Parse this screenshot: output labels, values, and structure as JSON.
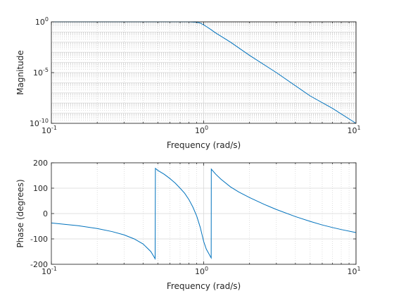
{
  "chart_data": [
    {
      "type": "line",
      "name": "magnitude-plot",
      "xlabel": "Frequency (rad/s)",
      "ylabel": "Magnitude",
      "xscale": "log",
      "yscale": "log",
      "xlim": [
        0.1,
        10
      ],
      "ylim": [
        1e-10,
        1
      ],
      "grid": true,
      "xticks": [
        {
          "value": 0.1,
          "base": "10",
          "exp": "-1"
        },
        {
          "value": 1,
          "base": "10",
          "exp": "0"
        },
        {
          "value": 10,
          "base": "10",
          "exp": "1"
        }
      ],
      "yticks": [
        {
          "value": 1e-10,
          "base": "10",
          "exp": "-10"
        },
        {
          "value": 1e-05,
          "base": "10",
          "exp": "-5"
        },
        {
          "value": 1,
          "base": "10",
          "exp": "0"
        }
      ],
      "series": [
        {
          "color": "#0072bd",
          "x": [
            0.1,
            0.2,
            0.3,
            0.4,
            0.5,
            0.6,
            0.7,
            0.8,
            0.9,
            0.95,
            1.0,
            1.05,
            1.1,
            1.2,
            1.5,
            2,
            3,
            5,
            7,
            10
          ],
          "y": [
            1,
            1,
            1,
            1,
            1,
            1,
            0.999,
            0.99,
            0.9,
            0.75,
            0.5,
            0.32,
            0.2,
            0.08,
            0.01,
            0.0005,
            1e-05,
            5e-08,
            3e-09,
            1e-10
          ]
        }
      ]
    },
    {
      "type": "line",
      "name": "phase-plot",
      "xlabel": "Frequency (rad/s)",
      "ylabel": "Phase (degrees)",
      "xscale": "log",
      "xlim": [
        0.1,
        10
      ],
      "ylim": [
        -200,
        200
      ],
      "grid": true,
      "xticks": [
        {
          "value": 0.1,
          "base": "10",
          "exp": "-1"
        },
        {
          "value": 1,
          "base": "10",
          "exp": "0"
        },
        {
          "value": 10,
          "base": "10",
          "exp": "1"
        }
      ],
      "yticks": [
        {
          "value": -200,
          "label": "-200"
        },
        {
          "value": -100,
          "label": "-100"
        },
        {
          "value": 0,
          "label": "0"
        },
        {
          "value": 100,
          "label": "100"
        },
        {
          "value": 200,
          "label": "200"
        }
      ],
      "series": [
        {
          "color": "#0072bd",
          "x": [
            0.1,
            0.15,
            0.2,
            0.25,
            0.3,
            0.35,
            0.4,
            0.45,
            0.48,
            0.482,
            0.5,
            0.55,
            0.6,
            0.65,
            0.7,
            0.75,
            0.8,
            0.85,
            0.9,
            0.95,
            1.0,
            1.04,
            1.12,
            1.122,
            1.2,
            1.3,
            1.5,
            1.7,
            2.0,
            2.5,
            3.0,
            4.0,
            5.0,
            6.0,
            7.0,
            8.0,
            10.0
          ],
          "y": [
            -37,
            -48,
            -59,
            -71,
            -84,
            -100,
            -120,
            -150,
            -178,
            178,
            170,
            155,
            138,
            120,
            100,
            80,
            55,
            25,
            -10,
            -55,
            -110,
            -140,
            -175,
            175,
            155,
            135,
            105,
            85,
            63,
            36,
            16,
            -12,
            -31,
            -45,
            -55,
            -63,
            -75
          ]
        }
      ]
    }
  ]
}
